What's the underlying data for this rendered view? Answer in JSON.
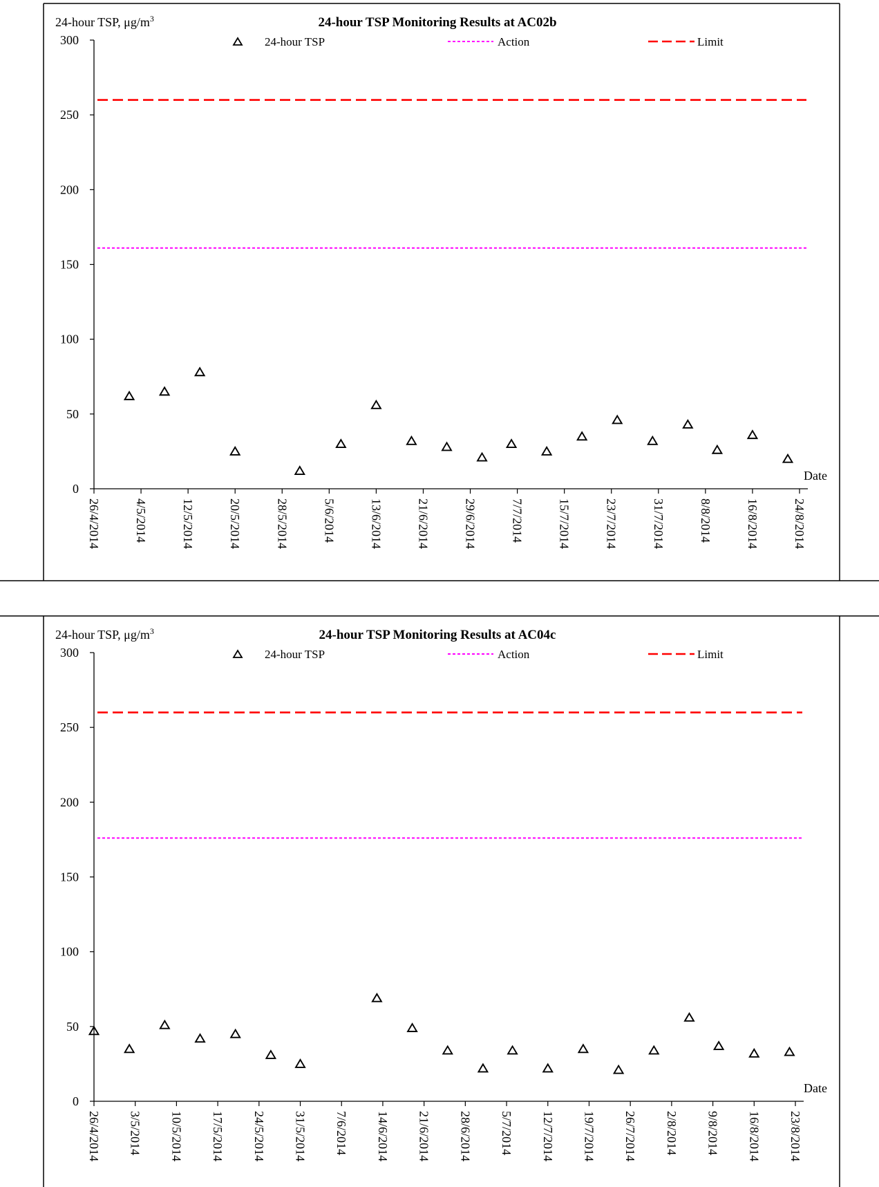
{
  "chart_data": [
    {
      "type": "scatter",
      "title": "24-hour TSP Monitoring Results at AC02b",
      "ylabel": "24-hour TSP, μg/m",
      "ylabel_sup": "3",
      "xlabel": "Date",
      "ylim": [
        0,
        300
      ],
      "yticks": [
        "0",
        "50",
        "100",
        "150",
        "200",
        "250",
        "300"
      ],
      "x_range": [
        "2014-04-26",
        "2014-08-24"
      ],
      "xticks": [
        {
          "date": "2014-04-26",
          "label": "26/4/2014"
        },
        {
          "date": "2014-05-04",
          "label": "4/5/2014"
        },
        {
          "date": "2014-05-12",
          "label": "12/5/2014"
        },
        {
          "date": "2014-05-20",
          "label": "20/5/2014"
        },
        {
          "date": "2014-05-28",
          "label": "28/5/2014"
        },
        {
          "date": "2014-06-05",
          "label": "5/6/2014"
        },
        {
          "date": "2014-06-13",
          "label": "13/6/2014"
        },
        {
          "date": "2014-06-21",
          "label": "21/6/2014"
        },
        {
          "date": "2014-06-29",
          "label": "29/6/2014"
        },
        {
          "date": "2014-07-07",
          "label": "7/7/2014"
        },
        {
          "date": "2014-07-15",
          "label": "15/7/2014"
        },
        {
          "date": "2014-07-23",
          "label": "23/7/2014"
        },
        {
          "date": "2014-07-31",
          "label": "31/7/2014"
        },
        {
          "date": "2014-08-08",
          "label": "8/8/2014"
        },
        {
          "date": "2014-08-16",
          "label": "16/8/2014"
        },
        {
          "date": "2014-08-24",
          "label": "24/8/2014"
        }
      ],
      "legend": [
        "24-hour TSP",
        "Action",
        "Limit"
      ],
      "action_level": 161,
      "limit_level": 260,
      "series": [
        {
          "name": "24-hour TSP",
          "points": [
            {
              "x": "2014-05-02",
              "y": 62
            },
            {
              "x": "2014-05-08",
              "y": 65
            },
            {
              "x": "2014-05-14",
              "y": 78
            },
            {
              "x": "2014-05-20",
              "y": 25
            },
            {
              "x": "2014-05-31",
              "y": 12
            },
            {
              "x": "2014-06-07",
              "y": 30
            },
            {
              "x": "2014-06-13",
              "y": 56
            },
            {
              "x": "2014-06-19",
              "y": 32
            },
            {
              "x": "2014-06-25",
              "y": 28
            },
            {
              "x": "2014-07-01",
              "y": 21
            },
            {
              "x": "2014-07-06",
              "y": 30
            },
            {
              "x": "2014-07-12",
              "y": 25
            },
            {
              "x": "2014-07-18",
              "y": 35
            },
            {
              "x": "2014-07-24",
              "y": 46
            },
            {
              "x": "2014-07-30",
              "y": 32
            },
            {
              "x": "2014-08-05",
              "y": 43
            },
            {
              "x": "2014-08-10",
              "y": 26
            },
            {
              "x": "2014-08-16",
              "y": 36
            },
            {
              "x": "2014-08-22",
              "y": 20
            }
          ]
        }
      ]
    },
    {
      "type": "scatter",
      "title": "24-hour TSP Monitoring Results at AC04c",
      "ylabel": "24-hour TSP, μg/m",
      "ylabel_sup": "3",
      "xlabel": "Date",
      "ylim": [
        0,
        300
      ],
      "yticks": [
        "0",
        "50",
        "100",
        "150",
        "200",
        "250",
        "300"
      ],
      "x_range": [
        "2014-04-26",
        "2014-08-23"
      ],
      "xticks": [
        {
          "date": "2014-04-26",
          "label": "26/4/2014"
        },
        {
          "date": "2014-05-03",
          "label": "3/5/2014"
        },
        {
          "date": "2014-05-10",
          "label": "10/5/2014"
        },
        {
          "date": "2014-05-17",
          "label": "17/5/2014"
        },
        {
          "date": "2014-05-24",
          "label": "24/5/2014"
        },
        {
          "date": "2014-05-31",
          "label": "31/5/2014"
        },
        {
          "date": "2014-06-07",
          "label": "7/6/2014"
        },
        {
          "date": "2014-06-14",
          "label": "14/6/2014"
        },
        {
          "date": "2014-06-21",
          "label": "21/6/2014"
        },
        {
          "date": "2014-06-28",
          "label": "28/6/2014"
        },
        {
          "date": "2014-07-05",
          "label": "5/7/2014"
        },
        {
          "date": "2014-07-12",
          "label": "12/7/2014"
        },
        {
          "date": "2014-07-19",
          "label": "19/7/2014"
        },
        {
          "date": "2014-07-26",
          "label": "26/7/2014"
        },
        {
          "date": "2014-08-02",
          "label": "2/8/2014"
        },
        {
          "date": "2014-08-09",
          "label": "9/8/2014"
        },
        {
          "date": "2014-08-16",
          "label": "16/8/2014"
        },
        {
          "date": "2014-08-23",
          "label": "23/8/2014"
        }
      ],
      "legend": [
        "24-hour TSP",
        "Action",
        "Limit"
      ],
      "action_level": 176,
      "limit_level": 260,
      "series": [
        {
          "name": "24-hour TSP",
          "points": [
            {
              "x": "2014-04-26",
              "y": 47
            },
            {
              "x": "2014-05-02",
              "y": 35
            },
            {
              "x": "2014-05-08",
              "y": 51
            },
            {
              "x": "2014-05-14",
              "y": 42
            },
            {
              "x": "2014-05-20",
              "y": 45
            },
            {
              "x": "2014-05-26",
              "y": 31
            },
            {
              "x": "2014-05-31",
              "y": 25
            },
            {
              "x": "2014-06-13",
              "y": 69
            },
            {
              "x": "2014-06-19",
              "y": 49
            },
            {
              "x": "2014-06-25",
              "y": 34
            },
            {
              "x": "2014-07-01",
              "y": 22
            },
            {
              "x": "2014-07-06",
              "y": 34
            },
            {
              "x": "2014-07-12",
              "y": 22
            },
            {
              "x": "2014-07-18",
              "y": 35
            },
            {
              "x": "2014-07-24",
              "y": 21
            },
            {
              "x": "2014-07-30",
              "y": 34
            },
            {
              "x": "2014-08-05",
              "y": 56
            },
            {
              "x": "2014-08-10",
              "y": 37
            },
            {
              "x": "2014-08-16",
              "y": 32
            },
            {
              "x": "2014-08-22",
              "y": 33
            }
          ]
        }
      ]
    }
  ]
}
